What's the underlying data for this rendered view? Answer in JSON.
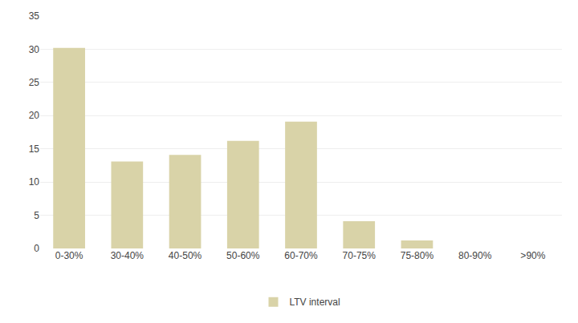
{
  "chart_data": {
    "type": "bar",
    "categories": [
      "0-30%",
      "30-40%",
      "40-50%",
      "50-60%",
      "60-70%",
      "70-75%",
      "75-80%",
      "80-90%",
      ">90%"
    ],
    "series": [
      {
        "name": "LTV interval",
        "color": "#d9d3a8",
        "values": [
          30.2,
          13.1,
          14.1,
          16.2,
          19.1,
          4.1,
          1.2,
          0,
          0
        ]
      }
    ],
    "ylim": [
      0,
      35
    ],
    "yticks": [
      0,
      5,
      10,
      15,
      20,
      25,
      30,
      35
    ],
    "grid": true,
    "legend": "bottom"
  }
}
